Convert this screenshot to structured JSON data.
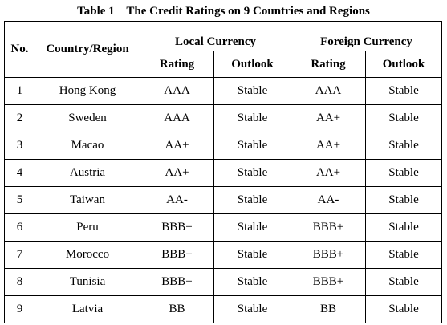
{
  "caption": "Table 1    The Credit Ratings on 9 Countries and Regions",
  "headers": {
    "no": "No.",
    "country": "Country/Region",
    "local_currency": "Local Currency",
    "foreign_currency": "Foreign Currency",
    "rating": "Rating",
    "outlook": "Outlook"
  },
  "rows": [
    {
      "no": "1",
      "country": "Hong Kong",
      "local_rating": "AAA",
      "local_outlook": "Stable",
      "foreign_rating": "AAA",
      "foreign_outlook": "Stable"
    },
    {
      "no": "2",
      "country": "Sweden",
      "local_rating": "AAA",
      "local_outlook": "Stable",
      "foreign_rating": "AA+",
      "foreign_outlook": "Stable"
    },
    {
      "no": "3",
      "country": "Macao",
      "local_rating": "AA+",
      "local_outlook": "Stable",
      "foreign_rating": "AA+",
      "foreign_outlook": "Stable"
    },
    {
      "no": "4",
      "country": "Austria",
      "local_rating": "AA+",
      "local_outlook": "Stable",
      "foreign_rating": "AA+",
      "foreign_outlook": "Stable"
    },
    {
      "no": "5",
      "country": "Taiwan",
      "local_rating": "AA-",
      "local_outlook": "Stable",
      "foreign_rating": "AA-",
      "foreign_outlook": "Stable"
    },
    {
      "no": "6",
      "country": "Peru",
      "local_rating": "BBB+",
      "local_outlook": "Stable",
      "foreign_rating": "BBB+",
      "foreign_outlook": "Stable"
    },
    {
      "no": "7",
      "country": "Morocco",
      "local_rating": "BBB+",
      "local_outlook": "Stable",
      "foreign_rating": "BBB+",
      "foreign_outlook": "Stable"
    },
    {
      "no": "8",
      "country": "Tunisia",
      "local_rating": "BBB+",
      "local_outlook": "Stable",
      "foreign_rating": "BBB+",
      "foreign_outlook": "Stable"
    },
    {
      "no": "9",
      "country": "Latvia",
      "local_rating": "BB",
      "local_outlook": "Stable",
      "foreign_rating": "BB",
      "foreign_outlook": "Stable"
    }
  ]
}
